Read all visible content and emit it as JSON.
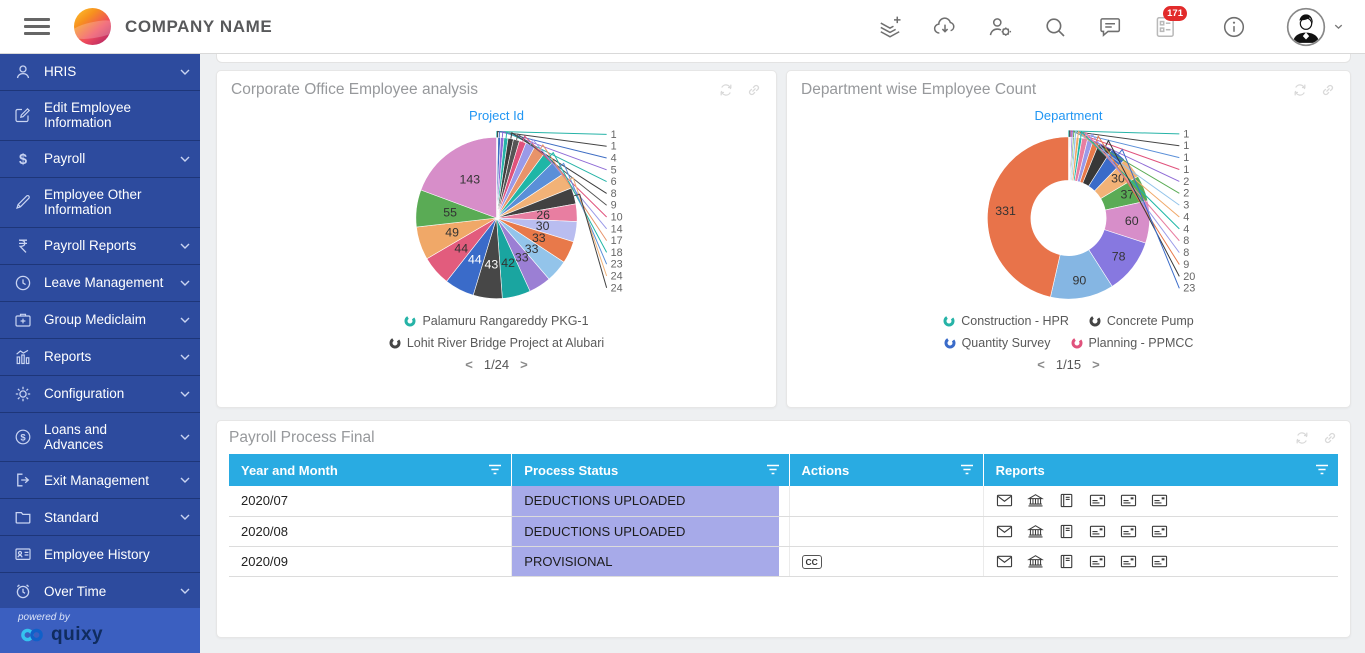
{
  "colors": {
    "accent_blue": "#2196f3",
    "table_header_bg": "#29abe2",
    "status_cell_bg": "#a7aae9",
    "sidebar_bg": "#2d4b9e",
    "sidebar_footer_bg": "#3b5fc0",
    "badge_red": "#e22b2b"
  },
  "header": {
    "brand": "COMPANY NAME",
    "badge_count": "171",
    "icons": [
      "add-stack",
      "cloud-download",
      "user-settings",
      "search",
      "chat",
      "tasks",
      "info",
      "avatar",
      "chevron-down"
    ]
  },
  "sidebar": {
    "items": [
      {
        "label": "HRIS",
        "icon": "user",
        "expandable": true
      },
      {
        "label": "Edit Employee Information",
        "icon": "edit",
        "expandable": false
      },
      {
        "label": "Payroll",
        "icon": "dollar",
        "expandable": true
      },
      {
        "label": "Employee Other Information",
        "icon": "pen",
        "expandable": false
      },
      {
        "label": "Payroll Reports",
        "icon": "rupee",
        "expandable": true
      },
      {
        "label": "Leave Management",
        "icon": "clock",
        "expandable": true
      },
      {
        "label": "Group Mediclaim",
        "icon": "medkit",
        "expandable": true
      },
      {
        "label": "Reports",
        "icon": "chart",
        "expandable": true
      },
      {
        "label": "Configuration",
        "icon": "gear",
        "expandable": true
      },
      {
        "label": "Loans and Advances",
        "icon": "dollar-circle",
        "expandable": true
      },
      {
        "label": "Exit Management",
        "icon": "exit",
        "expandable": true
      },
      {
        "label": "Standard",
        "icon": "folder",
        "expandable": true
      },
      {
        "label": "Employee History",
        "icon": "idcard",
        "expandable": false
      },
      {
        "label": "Over Time",
        "icon": "alarm",
        "expandable": true
      }
    ],
    "footer": {
      "powered_by": "powered by",
      "brand": "quixy"
    }
  },
  "chart_data": [
    {
      "type": "pie",
      "title": "Corporate Office Employee analysis",
      "series_label": "Project Id",
      "values": [
        1,
        1,
        4,
        5,
        6,
        8,
        9,
        10,
        14,
        17,
        18,
        23,
        24,
        24,
        26,
        30,
        33,
        33,
        33,
        42,
        43,
        44,
        44,
        49,
        55,
        143
      ],
      "colors": [
        "#26b3a7",
        "#454545",
        "#3f6ec4",
        "#8f6bd6",
        "#26b3a7",
        "#3d3d3d",
        "#555555",
        "#e0527c",
        "#9a9ae8",
        "#e8936a",
        "#1fb6a6",
        "#5a8fd8",
        "#f2b277",
        "#424242",
        "#e87ea1",
        "#b9bdf0",
        "#e8794a",
        "#93c4ea",
        "#9b7fd4",
        "#1aa5a0",
        "#474747",
        "#3a6bc9",
        "#e25c7d",
        "#f0a868",
        "#5aab55",
        "#d78ec9"
      ],
      "legend": [
        {
          "label": "Palamuru Rangareddy PKG-1",
          "color": "#26b3a7"
        },
        {
          "label": "Lohit River Bridge Project at Alubari",
          "color": "#454545"
        }
      ],
      "legend_columns": 1,
      "pagination": {
        "prev": "<",
        "label": "1/24",
        "next": ">"
      }
    },
    {
      "type": "donut",
      "title": "Department wise Employee Count",
      "series_label": "Department",
      "values": [
        1,
        1,
        1,
        1,
        2,
        2,
        3,
        4,
        4,
        8,
        8,
        9,
        20,
        23,
        30,
        37,
        60,
        78,
        90,
        331
      ],
      "colors": [
        "#26b3a7",
        "#454545",
        "#5a8fd8",
        "#e0527c",
        "#8f6bd6",
        "#5aab55",
        "#93c4ea",
        "#f0a868",
        "#1fb6a6",
        "#e87ea1",
        "#9a9ae8",
        "#e8794a",
        "#383838",
        "#3a6bc9",
        "#f2b277",
        "#5aab55",
        "#d78ec9",
        "#8778e0",
        "#85b6e3",
        "#e8734a"
      ],
      "legend": [
        {
          "label": "Construction - HPR",
          "color": "#26b3a7"
        },
        {
          "label": "Concrete Pump",
          "color": "#454545"
        },
        {
          "label": "Quantity Survey",
          "color": "#3a6bc9"
        },
        {
          "label": "Planning - PPMCC",
          "color": "#e0527c"
        }
      ],
      "legend_columns": 2,
      "pagination": {
        "prev": "<",
        "label": "1/15",
        "next": ">"
      }
    }
  ],
  "table": {
    "title": "Payroll Process Final",
    "columns": [
      "Year and Month",
      "Process Status",
      "Actions",
      "Reports"
    ],
    "column_widths": [
      "25.5%",
      "25%",
      "17.5%",
      "32%"
    ],
    "rows": [
      {
        "year_month": "2020/07",
        "process_status": "DEDUCTIONS UPLOADED",
        "actions": [],
        "reports": [
          "mail",
          "bank",
          "book",
          "card",
          "card",
          "card"
        ]
      },
      {
        "year_month": "2020/08",
        "process_status": "DEDUCTIONS UPLOADED",
        "actions": [],
        "reports": [
          "mail",
          "bank",
          "book",
          "card",
          "card",
          "card"
        ]
      },
      {
        "year_month": "2020/09",
        "process_status": "PROVISIONAL",
        "actions": [
          {
            "icon": "cc",
            "label": "CC"
          }
        ],
        "reports": [
          "mail",
          "bank",
          "book",
          "card",
          "card",
          "card"
        ]
      }
    ]
  }
}
